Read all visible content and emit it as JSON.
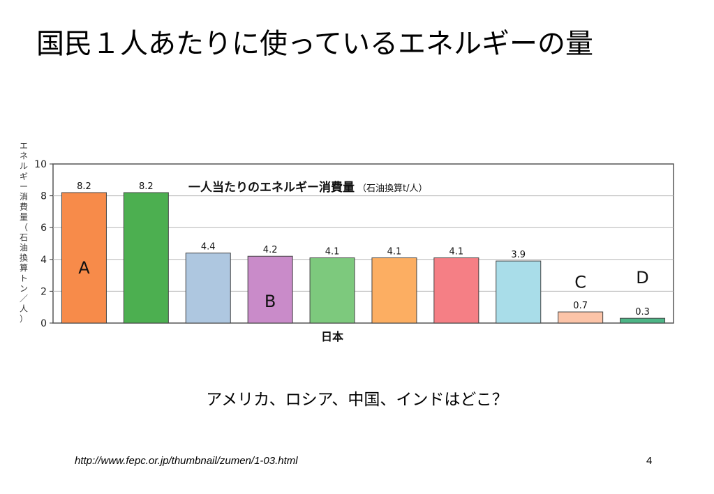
{
  "slide": {
    "title": "国民１人あたりに使っているエネルギーの量",
    "question": "アメリカ、ロシア、中国、インドはどこ？",
    "source": "http://www.fepc.or.jp/thumbnail/zumen/1-03.html",
    "page_number": "4"
  },
  "chart_data": {
    "type": "bar",
    "title": "一人当たりのエネルギー消費量",
    "title_unit": "（石油換算t/人）",
    "ylabel": "エネルギー消費量（石油換算トン／人）",
    "ylim": [
      0,
      10
    ],
    "yticks": [
      0,
      2,
      4,
      6,
      8,
      10
    ],
    "grid": true,
    "categories": [
      "A",
      "",
      "",
      "B",
      "日本",
      "",
      "",
      "",
      "C",
      "D"
    ],
    "values": [
      8.2,
      8.2,
      4.4,
      4.2,
      4.1,
      4.1,
      4.1,
      3.9,
      0.7,
      0.3
    ],
    "value_labels": [
      "8.2",
      "8.2",
      "4.4",
      "4.2",
      "4.1",
      "4.1",
      "4.1",
      "3.9",
      "0.7",
      "0.3"
    ],
    "colors": [
      "#f78b4a",
      "#4caf50",
      "#aec7e0",
      "#c98bc9",
      "#7dc97d",
      "#fcae62",
      "#f57f85",
      "#a9dde9",
      "#fcc4a8",
      "#4db586"
    ],
    "letter_labels": [
      "A",
      "",
      "",
      "B",
      "",
      "",
      "",
      "",
      "C",
      "D"
    ],
    "x_group_label": "日本"
  }
}
